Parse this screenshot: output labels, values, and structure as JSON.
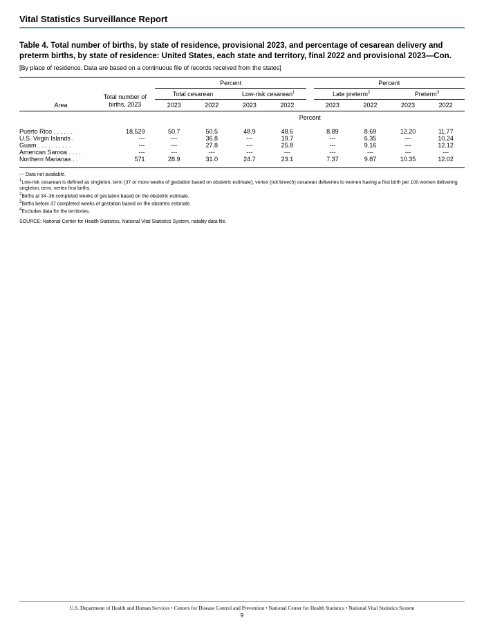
{
  "header": {
    "title": "Vital Statistics Surveillance Report"
  },
  "table": {
    "title": "Table 4. Total number of births, by state of residence, provisional 2023, and percentage of cesarean delivery and preterm births, by state of residence: United States, each state and territory, final 2022 and provisional 2023—Con.",
    "subtitle": "[By place of residence. Data are based on a continuous file of records received from the states]",
    "spanners": {
      "percent_left": "Percent",
      "percent_right": "Percent",
      "total_cesarean": "Total cesarean",
      "low_risk": "Low-risk cesarean",
      "late_preterm": "Late preterm",
      "preterm": "Preterm",
      "sup1": "1",
      "sup2": "2",
      "sup3": "3"
    },
    "cols": {
      "area": "Area",
      "total_births": "Total number of births, 2023",
      "y2023": "2023",
      "y2022": "2022",
      "body_percent": "Percent"
    },
    "rows": [
      {
        "area": "Puerto Rico",
        "births": "18,529",
        "tc23": "50.7",
        "tc22": "50.5",
        "lr23": "48.9",
        "lr22": "48.6",
        "lp23": "8.89",
        "lp22": "8.69",
        "pt23": "12.20",
        "pt22": "11.77"
      },
      {
        "area": "U.S. Virgin Islands",
        "births": "---",
        "tc23": "---",
        "tc22": "36.8",
        "lr23": "---",
        "lr22": "19.7",
        "lp23": "---",
        "lp22": "6.35",
        "pt23": "---",
        "pt22": "10.24"
      },
      {
        "area": "Guam",
        "births": "---",
        "tc23": "---",
        "tc22": "27.8",
        "lr23": "---",
        "lr22": "25.8",
        "lp23": "---",
        "lp22": "9.16",
        "pt23": "---",
        "pt22": "12.12"
      },
      {
        "area": "American Samoa",
        "births": "---",
        "tc23": "---",
        "tc22": "---",
        "lr23": "---",
        "lr22": "---",
        "lp23": "---",
        "lp22": "---",
        "pt23": "---",
        "pt22": "---"
      },
      {
        "area": "Northern Marianas",
        "births": "571",
        "tc23": "28.9",
        "tc22": "31.0",
        "lr23": "24.7",
        "lr22": "23.1",
        "lp23": "7.37",
        "lp22": "9.87",
        "pt23": "10.35",
        "pt22": "12.02"
      }
    ]
  },
  "footnotes": {
    "na": "--- Data not available.",
    "f1_sup": "1",
    "f1": "Low-risk cesarean is defined as singleton, term (37 or more weeks of gestation based on obstetric estimate), vertex (not breech) cesarean deliveries to women having a first birth per 100 women delivering singleton, term, vertex first births.",
    "f2_sup": "2",
    "f2": "Births at 34–36 completed weeks of gestation based on the obstetric estimate.",
    "f3_sup": "3",
    "f3": "Births before 37 completed weeks of gestation based on the obstetric estimate.",
    "f4_sup": "4",
    "f4": "Excludes data for the territories.",
    "source": "SOURCE: National Center for Health Statistics, National Vital Statistics System, natality data file."
  },
  "footer": {
    "line": "U.S. Department of Health and Human Services • Centers for Disease Control and Prevention • National Center for Health Statistics • National Vital Statistics System",
    "page": "9"
  }
}
